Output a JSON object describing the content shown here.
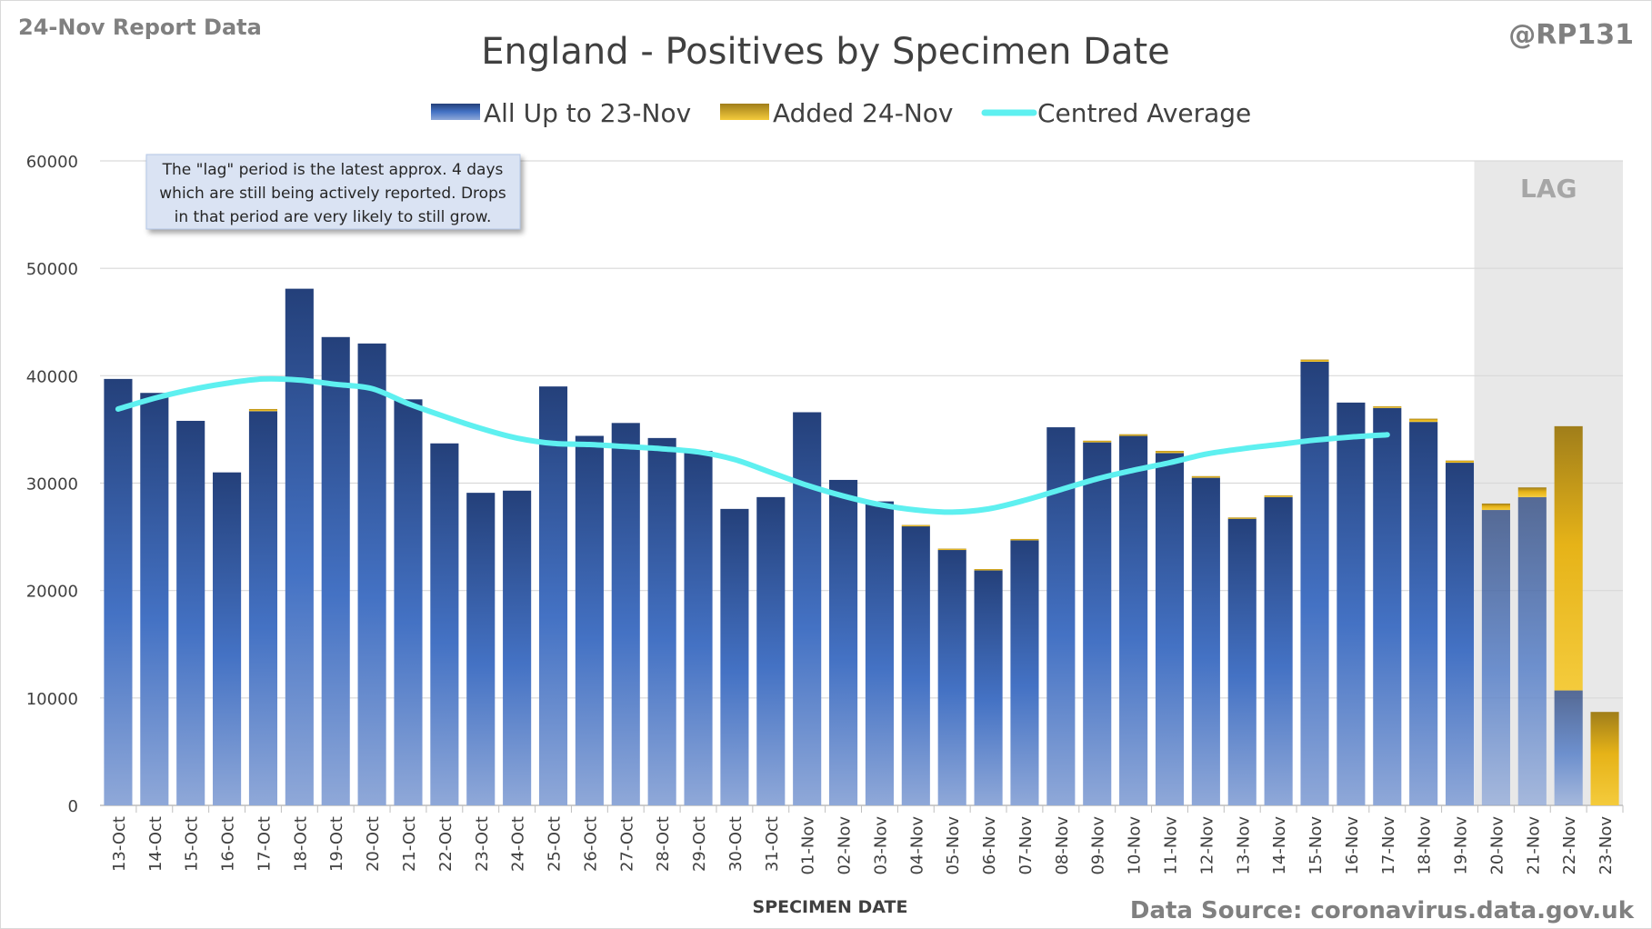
{
  "header": {
    "report_label": "24-Nov Report Data",
    "author_handle": "@RP131"
  },
  "footer": {
    "source_label": "Data Source: coronavirus.data.gov.uk"
  },
  "annotation": {
    "line1": "The \"lag\" period is the latest approx. 4 days",
    "line2": "which are still being actively reported.  Drops",
    "line3": "in that period are very likely to still grow."
  },
  "colors": {
    "base_bar": "#2f5597",
    "added_bar": "#e6b318",
    "average_line": "#5ef0f0",
    "lag_shade": "#e8e8e8",
    "grid": "#d9d9d9"
  },
  "chart_data": {
    "type": "bar",
    "title": "England - Positives by Specimen Date",
    "xlabel": "SPECIMEN DATE",
    "ylabel": "",
    "ylim": [
      0,
      60000
    ],
    "yticks": [
      0,
      10000,
      20000,
      30000,
      40000,
      50000,
      60000
    ],
    "grid": true,
    "legend_position": "top",
    "lag_label": "LAG",
    "lag_categories": [
      "20-Nov",
      "21-Nov",
      "22-Nov",
      "23-Nov"
    ],
    "categories": [
      "13-Oct",
      "14-Oct",
      "15-Oct",
      "16-Oct",
      "17-Oct",
      "18-Oct",
      "19-Oct",
      "20-Oct",
      "21-Oct",
      "22-Oct",
      "23-Oct",
      "24-Oct",
      "25-Oct",
      "26-Oct",
      "27-Oct",
      "28-Oct",
      "29-Oct",
      "30-Oct",
      "31-Oct",
      "01-Nov",
      "02-Nov",
      "03-Nov",
      "04-Nov",
      "05-Nov",
      "06-Nov",
      "07-Nov",
      "08-Nov",
      "09-Nov",
      "10-Nov",
      "11-Nov",
      "12-Nov",
      "13-Nov",
      "14-Nov",
      "15-Nov",
      "16-Nov",
      "17-Nov",
      "18-Nov",
      "19-Nov",
      "20-Nov",
      "21-Nov",
      "22-Nov",
      "23-Nov"
    ],
    "series": [
      {
        "name": "All Up to 23-Nov",
        "kind": "bar-stack",
        "values": [
          39700,
          38400,
          35800,
          31000,
          36700,
          48100,
          43600,
          43000,
          37800,
          33700,
          29100,
          29300,
          39000,
          34400,
          35600,
          34200,
          33000,
          27600,
          28700,
          36600,
          30300,
          28300,
          26000,
          23800,
          21900,
          24700,
          35200,
          33800,
          34400,
          32800,
          30500,
          26700,
          28700,
          41300,
          37500,
          37000,
          35700,
          31900,
          27500,
          28700,
          10700,
          0
        ]
      },
      {
        "name": "Added 24-Nov",
        "kind": "bar-stack",
        "values": [
          0,
          0,
          0,
          0,
          200,
          0,
          0,
          0,
          0,
          0,
          0,
          0,
          0,
          0,
          0,
          0,
          0,
          0,
          0,
          0,
          0,
          0,
          100,
          100,
          100,
          100,
          0,
          150,
          150,
          200,
          150,
          100,
          150,
          200,
          0,
          150,
          300,
          200,
          600,
          900,
          24600,
          8700
        ]
      },
      {
        "name": "Centred Average",
        "kind": "line",
        "values": [
          36900,
          37900,
          38700,
          39300,
          39700,
          39600,
          39200,
          38800,
          37400,
          36200,
          35100,
          34200,
          33700,
          33600,
          33400,
          33200,
          32900,
          32200,
          31000,
          29800,
          28800,
          28000,
          27500,
          27300,
          27600,
          28400,
          29400,
          30400,
          31200,
          31900,
          32700,
          33200,
          33600,
          34000,
          34300,
          34500,
          null,
          null,
          null,
          null,
          null,
          null
        ]
      }
    ]
  }
}
